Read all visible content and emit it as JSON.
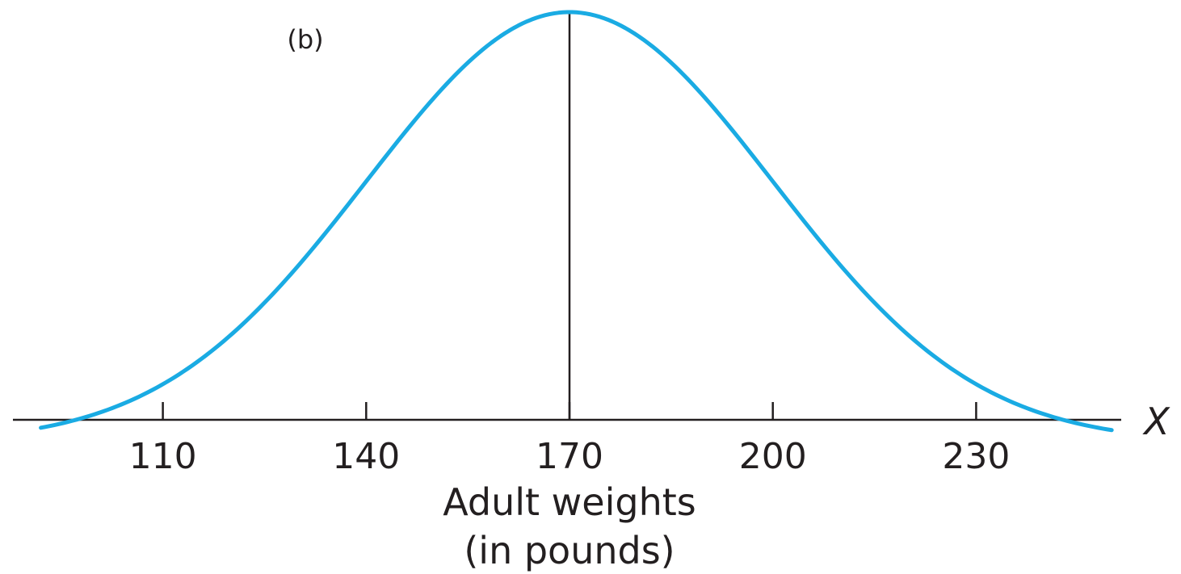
{
  "chart_data": {
    "type": "line",
    "panel_label": "(b)",
    "xlabel": "Adult weights",
    "xlabel_line2": "(in pounds)",
    "axis_variable": "X",
    "xlim": [
      87.5,
      254
    ],
    "x_ticks": [
      110,
      140,
      170,
      200,
      230
    ],
    "x_tick_labels": [
      "110",
      "140",
      "170",
      "200",
      "230"
    ],
    "mean": 170,
    "sd": 30,
    "curve_x_range": [
      92,
      250
    ],
    "grid": false,
    "colors": {
      "curve": "#1aabe3",
      "axis": "#231f20"
    }
  }
}
